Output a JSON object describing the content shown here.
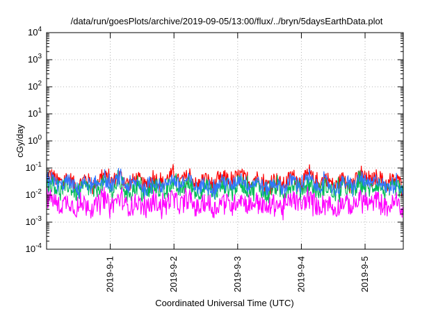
{
  "chart_data": {
    "type": "line",
    "title": "/data/run/goesPlots/archive/2019-09-05/13:00/flux/../bryn/5daysEarthData.plot",
    "xlabel": "Coordinated Universal Time (UTC)",
    "ylabel": "cGy/day",
    "yscale": "log",
    "ylim": [
      0.0001,
      10000
    ],
    "y_ticks": [
      {
        "base": "10",
        "exp": "-4"
      },
      {
        "base": "10",
        "exp": "-3"
      },
      {
        "base": "10",
        "exp": "-2"
      },
      {
        "base": "10",
        "exp": "-1"
      },
      {
        "base": "10",
        "exp": "0"
      },
      {
        "base": "10",
        "exp": "1"
      },
      {
        "base": "10",
        "exp": "2"
      },
      {
        "base": "10",
        "exp": "3"
      },
      {
        "base": "10",
        "exp": "4"
      }
    ],
    "x_range_days": [
      0,
      5.6
    ],
    "x_ticks": [
      {
        "label": "2019-9-1",
        "day": 1
      },
      {
        "label": "2019-9-2",
        "day": 2
      },
      {
        "label": "2019-9-3",
        "day": 3
      },
      {
        "label": "2019-9-4",
        "day": 4
      },
      {
        "label": "2019-9-5",
        "day": 5
      }
    ],
    "grid": true,
    "series": [
      {
        "color": "#ff0000",
        "level": 0.035,
        "spread": 0.28
      },
      {
        "color": "#00bb55",
        "level": 0.018,
        "spread": 0.32
      },
      {
        "color": "#3377ff",
        "level": 0.026,
        "spread": 0.26
      },
      {
        "color": "#ff00ff",
        "level": 0.0048,
        "spread": 0.34
      }
    ]
  }
}
